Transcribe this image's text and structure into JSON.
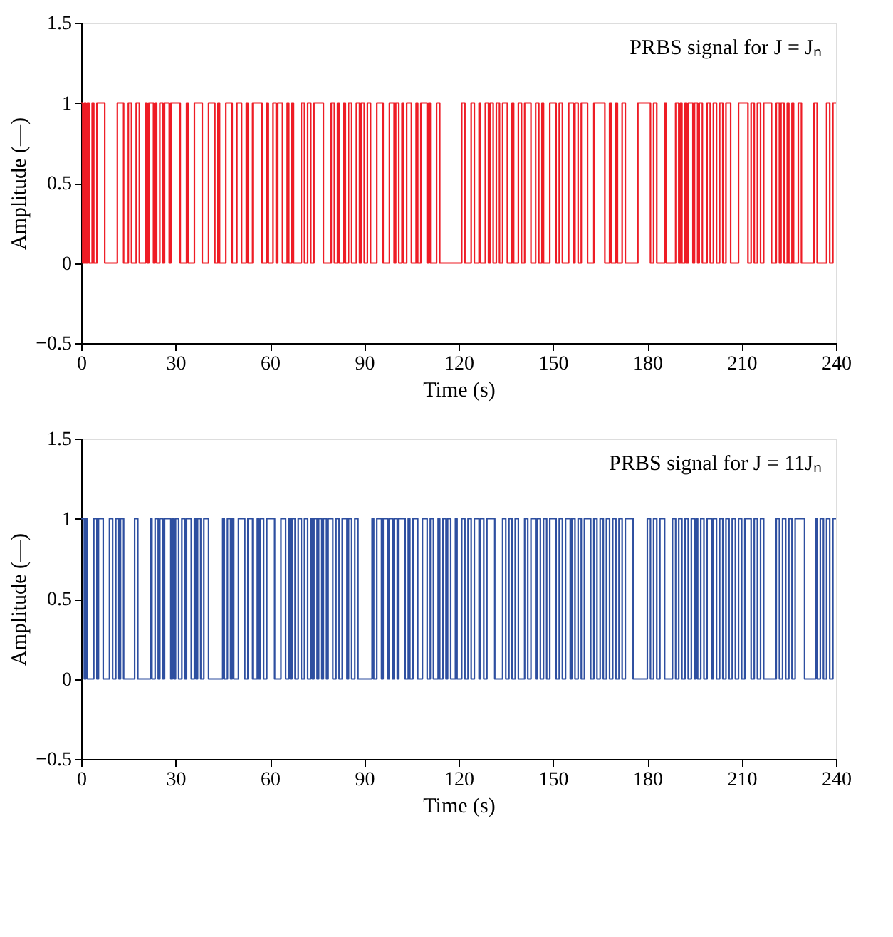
{
  "chart_data": [
    {
      "type": "step",
      "xlabel": "Time (s)",
      "ylabel": "Amplitude (—)",
      "annotations": [
        "PRBS signal for J = Jₙ"
      ],
      "grid": false,
      "xlim": [
        0,
        240
      ],
      "xticks": [
        0,
        30,
        60,
        90,
        120,
        150,
        180,
        210,
        240
      ],
      "ylim": [
        -0.5,
        1.5
      ],
      "yticks": [
        {
          "value": -0.5,
          "label": "−0.5"
        },
        0,
        0.5,
        1,
        1.5
      ],
      "series": [
        {
          "color": "#ee1c25",
          "x": [
            0,
            0.5,
            1,
            1.5,
            2,
            2.5,
            3.5,
            4,
            5,
            7.5,
            11.5,
            13.5,
            15,
            16,
            17.5,
            18.5,
            20.5,
            21,
            21.5,
            23,
            23.5,
            24,
            25,
            26,
            26.5,
            28,
            28.5,
            31.5,
            33.5,
            34,
            36,
            38.5,
            40.5,
            42.5,
            43.5,
            44,
            46,
            48,
            49.5,
            51,
            52.5,
            53,
            54.5,
            57.5,
            59,
            59.5,
            61,
            62,
            62.5,
            64,
            65.5,
            66,
            67,
            67.5,
            70,
            71,
            72,
            73,
            74,
            77,
            79.5,
            80.5,
            81.5,
            82,
            83.5,
            84,
            85,
            86,
            87.5,
            88.5,
            89,
            90,
            91,
            92,
            94,
            96,
            98,
            99.5,
            100,
            101,
            102,
            102.5,
            103.5,
            105,
            106.5,
            107,
            108,
            110,
            110.5,
            111,
            113,
            114,
            121,
            122,
            124,
            125,
            126.5,
            127,
            128.5,
            129.5,
            130,
            131,
            132,
            133,
            134,
            135.5,
            137,
            137.5,
            139,
            140,
            141,
            143,
            144.5,
            145.5,
            146.5,
            147,
            149,
            151,
            152,
            153,
            155,
            156.5,
            157,
            158,
            159,
            161,
            163,
            166.5,
            168,
            168.5,
            170,
            170.5,
            172,
            173,
            177,
            181,
            182,
            183,
            185.5,
            186,
            189,
            190,
            190.5,
            191,
            192,
            192.5,
            193,
            194.5,
            195,
            196,
            196.5,
            197.5,
            199,
            200,
            201,
            202,
            203,
            204,
            205,
            206.5,
            209,
            212,
            213,
            214,
            215,
            216,
            217,
            219.5,
            221,
            222,
            222.5,
            223.5,
            224.5,
            225,
            226,
            226.5,
            228,
            229,
            233,
            234,
            237,
            238,
            239,
            240
          ],
          "values": [
            1,
            0,
            1,
            0,
            1,
            0,
            1,
            0,
            1,
            0,
            1,
            0,
            1,
            0,
            1,
            0,
            1,
            0,
            1,
            0,
            1,
            0,
            1,
            0,
            1,
            0,
            1,
            0,
            1,
            0,
            1,
            0,
            1,
            0,
            1,
            0,
            1,
            0,
            1,
            0,
            1,
            0,
            1,
            0,
            1,
            0,
            1,
            0,
            1,
            0,
            1,
            0,
            1,
            0,
            1,
            0,
            1,
            0,
            1,
            0,
            1,
            0,
            1,
            0,
            1,
            0,
            1,
            0,
            1,
            0,
            1,
            0,
            1,
            0,
            1,
            0,
            1,
            0,
            1,
            0,
            1,
            0,
            1,
            0,
            1,
            0,
            1,
            0,
            1,
            0,
            1,
            0,
            1,
            0,
            1,
            0,
            1,
            0,
            1,
            0,
            1,
            0,
            1,
            0,
            1,
            0,
            1,
            0,
            1,
            0,
            1,
            0,
            1,
            0,
            1,
            0,
            1,
            0,
            1,
            0,
            1,
            0,
            1,
            0,
            1,
            0,
            1,
            0,
            1,
            0,
            1,
            0,
            1,
            0,
            1,
            0,
            1,
            0,
            1,
            0,
            1,
            0,
            1,
            0,
            1,
            0,
            1,
            0,
            1,
            0,
            1,
            0,
            1,
            0,
            1,
            0,
            1,
            0,
            1,
            0,
            1,
            0,
            1,
            0,
            1,
            0,
            1,
            0,
            1,
            0,
            1,
            0,
            1,
            0,
            1,
            0,
            1,
            0,
            1,
            0,
            1,
            0,
            1,
            1
          ]
        }
      ]
    },
    {
      "type": "step",
      "xlabel": "Time (s)",
      "ylabel": "Amplitude (—)",
      "annotations": [
        "PRBS signal for J = 11Jₙ"
      ],
      "grid": false,
      "xlim": [
        0,
        240
      ],
      "xticks": [
        0,
        30,
        60,
        90,
        120,
        150,
        180,
        210,
        240
      ],
      "ylim": [
        -0.5,
        1.5
      ],
      "yticks": [
        {
          "value": -0.5,
          "label": "−0.5"
        },
        0,
        0.5,
        1,
        1.5
      ],
      "series": [
        {
          "color": "#2e4fa0",
          "x": [
            0,
            1,
            1.5,
            2,
            4,
            5,
            5.5,
            7,
            9,
            10,
            11,
            12,
            12.5,
            13.5,
            17,
            18,
            22,
            22.5,
            23.5,
            24.5,
            25,
            26,
            26.5,
            28.5,
            29,
            29.5,
            30,
            31,
            32,
            33,
            33.5,
            35,
            36,
            36.5,
            37,
            38,
            39,
            40.5,
            45,
            45.5,
            46.5,
            47.5,
            48,
            48.5,
            50,
            52,
            53,
            54.5,
            56,
            56.5,
            57,
            58,
            59,
            61.5,
            63.5,
            65,
            66,
            66.5,
            67,
            68,
            69,
            70,
            71,
            72,
            73,
            73.5,
            74,
            75,
            75.5,
            76.5,
            77,
            78,
            78.5,
            80,
            81,
            82,
            83,
            84.5,
            85,
            86,
            87,
            88,
            92.5,
            93,
            94,
            95.5,
            96,
            97.5,
            98,
            99,
            99.5,
            100.5,
            101,
            103,
            104,
            104.5,
            105.5,
            107,
            108.5,
            110,
            111,
            112,
            113.5,
            114,
            115,
            116,
            116.5,
            117.5,
            119,
            119.5,
            121,
            122,
            123,
            124,
            125,
            126.5,
            127,
            128,
            129,
            131.5,
            134,
            135,
            136,
            137,
            138,
            139,
            141,
            142,
            143,
            144.5,
            145,
            146,
            147,
            148,
            149,
            151,
            152,
            153,
            154,
            155.5,
            156,
            157,
            158,
            159,
            160,
            162,
            163,
            164,
            165,
            166,
            167,
            168,
            169,
            170,
            171,
            172,
            173,
            175.5,
            180,
            181,
            182,
            183,
            184,
            185.5,
            188,
            189,
            190,
            191,
            192,
            193,
            194,
            195,
            195.5,
            196,
            197,
            198,
            199,
            200.5,
            201,
            202,
            203,
            204,
            205,
            206,
            207,
            208,
            209,
            210,
            211,
            213,
            214,
            215,
            216,
            217,
            221,
            222,
            223,
            224,
            225,
            226,
            227,
            230,
            233.5,
            234,
            235,
            236,
            237,
            238,
            239,
            240
          ],
          "values": [
            1,
            0,
            1,
            0,
            1,
            0,
            1,
            0,
            1,
            0,
            1,
            0,
            1,
            0,
            1,
            0,
            1,
            0,
            1,
            0,
            1,
            0,
            1,
            0,
            1,
            0,
            1,
            0,
            1,
            0,
            1,
            0,
            1,
            0,
            1,
            0,
            1,
            0,
            1,
            0,
            1,
            0,
            1,
            0,
            1,
            0,
            1,
            0,
            1,
            0,
            1,
            0,
            1,
            0,
            1,
            0,
            1,
            0,
            1,
            0,
            1,
            0,
            1,
            0,
            1,
            0,
            1,
            0,
            1,
            0,
            1,
            0,
            1,
            0,
            1,
            0,
            1,
            0,
            1,
            0,
            1,
            0,
            1,
            0,
            1,
            0,
            1,
            0,
            1,
            0,
            1,
            0,
            1,
            0,
            1,
            0,
            1,
            0,
            1,
            0,
            1,
            0,
            1,
            0,
            1,
            0,
            1,
            0,
            1,
            0,
            1,
            0,
            1,
            0,
            1,
            0,
            1,
            0,
            1,
            0,
            1,
            0,
            1,
            0,
            1,
            0,
            1,
            0,
            1,
            0,
            1,
            0,
            1,
            0,
            1,
            0,
            1,
            0,
            1,
            0,
            1,
            0,
            1,
            0,
            1,
            0,
            1,
            0,
            1,
            0,
            1,
            0,
            1,
            0,
            1,
            0,
            1,
            0,
            1,
            0,
            1,
            0,
            1,
            0,
            1,
            0,
            1,
            0,
            1,
            0,
            1,
            0,
            1,
            0,
            1,
            0,
            1,
            0,
            1,
            0,
            1,
            0,
            1,
            0,
            1,
            0,
            1,
            0,
            1,
            0,
            1,
            0,
            1,
            0,
            1,
            0,
            1,
            0,
            1,
            0,
            1,
            0,
            1,
            0,
            1,
            0,
            1,
            0,
            1,
            1
          ]
        }
      ]
    }
  ]
}
